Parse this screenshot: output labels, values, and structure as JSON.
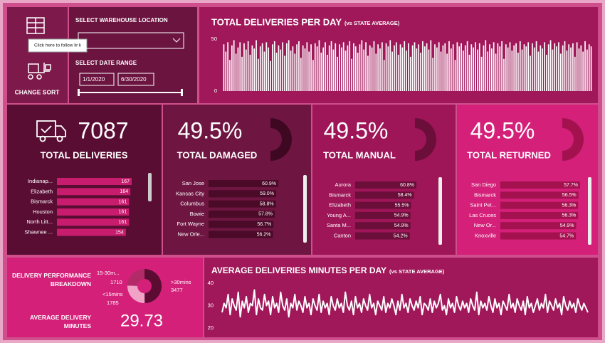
{
  "sort_button": {
    "label": "CHANGE SORT",
    "tooltip": "Click here to follow link"
  },
  "filters": {
    "warehouse_label": "SELECT WAREHOUSE LOCATION",
    "date_label": "SELECT DATE RANGE",
    "start_date": "1/1/2020",
    "end_date": "6/30/2020"
  },
  "kpis": [
    {
      "value": "7087",
      "label": "TOTAL DELIVERIES"
    },
    {
      "value": "49.5%",
      "label": "TOTAL DAMAGED"
    },
    {
      "value": "49.5%",
      "label": "TOTAL MANUAL"
    },
    {
      "value": "49.5%",
      "label": "TOTAL RETURNED"
    }
  ],
  "average_delivery": {
    "label": "AVERAGE DELIVERY MINUTES",
    "value": "29.73"
  },
  "chart_data": [
    {
      "type": "bar",
      "title": "TOTAL DELIVERIES PER DAY",
      "subtitle": "(vs STATE AVERAGE)",
      "color": "#ffffff",
      "ylim": [
        0,
        50
      ],
      "yticks": [
        0,
        50
      ],
      "values": [
        45,
        38,
        47,
        30,
        44,
        49,
        36,
        42,
        47,
        33,
        46,
        40,
        48,
        35,
        44,
        41,
        49,
        31,
        43,
        46,
        38,
        47,
        42,
        29,
        45,
        48,
        37,
        44,
        40,
        47,
        34,
        46,
        49,
        39,
        43,
        36,
        45,
        48,
        32,
        44,
        41,
        47,
        38,
        45,
        30,
        46,
        43,
        49,
        37,
        42,
        47,
        35,
        44,
        48,
        40,
        46,
        33,
        45,
        42,
        47,
        39,
        44,
        48,
        31,
        46,
        43,
        37,
        45,
        49,
        40,
        47,
        34,
        44,
        42,
        48,
        36,
        45,
        41,
        47,
        30,
        46,
        43,
        49,
        38,
        44,
        47,
        35,
        45,
        42,
        48,
        39,
        46,
        33,
        44,
        47,
        41,
        45,
        37,
        48,
        43,
        46,
        40,
        49,
        32,
        45,
        42,
        47,
        38,
        44,
        46,
        36,
        48,
        41,
        45,
        30,
        47,
        43,
        46,
        39,
        44,
        48,
        35,
        45,
        42,
        47,
        40,
        46,
        33,
        44,
        49,
        38,
        45,
        41,
        47,
        36,
        46,
        43,
        48,
        31,
        45,
        42,
        47,
        39,
        44,
        46,
        37,
        48,
        40,
        45,
        43,
        47,
        34,
        46,
        42,
        48,
        38,
        44,
        41,
        47,
        35,
        45,
        49,
        40,
        46,
        43,
        47,
        36,
        44,
        48,
        39,
        45,
        42,
        46,
        33,
        47,
        41,
        44,
        38,
        48,
        40,
        45,
        43
      ]
    },
    {
      "type": "hbar",
      "color": "#c81c6e",
      "categories": [
        "Indianap...",
        "Elizabeth",
        "Bismarck",
        "Houston",
        "North Litt...",
        "Shawnee ..."
      ],
      "values": [
        167,
        164,
        161,
        161,
        161,
        154
      ]
    },
    {
      "type": "hbar",
      "color": "#4a0a28",
      "categories": [
        "San Jose",
        "Kansas City",
        "Columbus",
        "Bowie",
        "Fort Wayne",
        "New Orle..."
      ],
      "values": [
        60.9,
        59.0,
        58.8,
        57.8,
        56.7,
        56.2
      ],
      "value_labels": [
        "60.9%",
        "59.0%",
        "58.8%",
        "57.8%",
        "56.7%",
        "56.2%"
      ]
    },
    {
      "type": "hbar",
      "color": "#6b0f3a",
      "categories": [
        "Aurora",
        "Bismarck",
        "Elizabeth",
        "Young A...",
        "Santa M...",
        "Canton"
      ],
      "values": [
        60.8,
        58.4,
        55.5,
        54.9,
        54.9,
        54.2
      ],
      "value_labels": [
        "60.8%",
        "58.4%",
        "55.5%",
        "54.9%",
        "54.9%",
        "54.2%"
      ]
    },
    {
      "type": "hbar",
      "color": "#a3124f",
      "categories": [
        "San Diego",
        "Bismarck",
        "Saint Pet...",
        "Las Cruces",
        "New Or...",
        "Knoxville"
      ],
      "values": [
        57.7,
        56.5,
        56.3,
        56.3,
        54.9,
        54.7
      ],
      "value_labels": [
        "57.7%",
        "56.5%",
        "56.3%",
        "56.3%",
        "54.9%",
        "54.7%"
      ]
    },
    {
      "type": "donut",
      "title": "DELIVERY PERFORMANCE BREAKDOWN",
      "categories": [
        ">30mins",
        "<15mins",
        "15-30m..."
      ],
      "values": [
        3477,
        1785,
        1710
      ],
      "colors": [
        "#5c0c32",
        "#f0a3c6",
        "#b32a68"
      ]
    },
    {
      "type": "line",
      "title": "AVERAGE DELIVERIES MINUTES PER DAY",
      "subtitle": "(vs STATE AVERAGE)",
      "color": "#ffffff",
      "ylim": [
        20,
        40
      ],
      "yticks": [
        20,
        30,
        40
      ],
      "values": [
        27,
        31,
        29,
        35,
        26,
        33,
        30,
        28,
        36,
        25,
        32,
        29,
        34,
        27,
        31,
        30,
        37,
        26,
        33,
        29,
        28,
        35,
        30,
        32,
        26,
        34,
        29,
        31,
        27,
        36,
        30,
        28,
        33,
        25,
        31,
        29,
        35,
        28,
        32,
        30,
        27,
        34,
        29,
        31,
        26,
        33,
        30,
        28,
        35,
        27,
        32,
        29,
        31,
        26,
        34,
        30,
        28,
        33,
        29,
        31,
        27,
        36,
        30,
        28,
        32,
        26,
        34,
        29,
        31,
        27,
        33,
        30,
        28,
        35,
        29,
        31,
        26,
        32,
        30,
        28,
        34,
        27,
        31,
        29,
        33,
        30,
        26,
        32,
        28,
        35,
        29,
        31,
        27,
        33,
        30,
        28,
        32,
        29,
        34,
        26,
        31,
        30,
        28,
        33,
        27,
        32,
        29,
        31,
        35,
        28,
        30,
        26,
        33,
        29,
        31,
        27,
        34,
        30,
        28,
        32,
        29,
        31,
        27,
        33,
        30,
        28,
        36,
        26,
        32,
        29,
        31,
        28,
        34,
        30,
        27,
        33,
        29,
        31,
        26,
        32,
        30,
        28,
        35,
        29,
        31,
        27,
        33,
        30,
        28,
        32,
        26,
        34,
        29,
        31,
        27,
        30,
        33,
        28,
        31,
        29,
        35,
        27,
        32,
        30,
        28,
        33,
        29,
        31,
        26,
        34,
        30,
        28,
        32,
        29,
        31,
        27,
        33,
        30,
        28,
        31,
        29,
        27
      ]
    }
  ]
}
